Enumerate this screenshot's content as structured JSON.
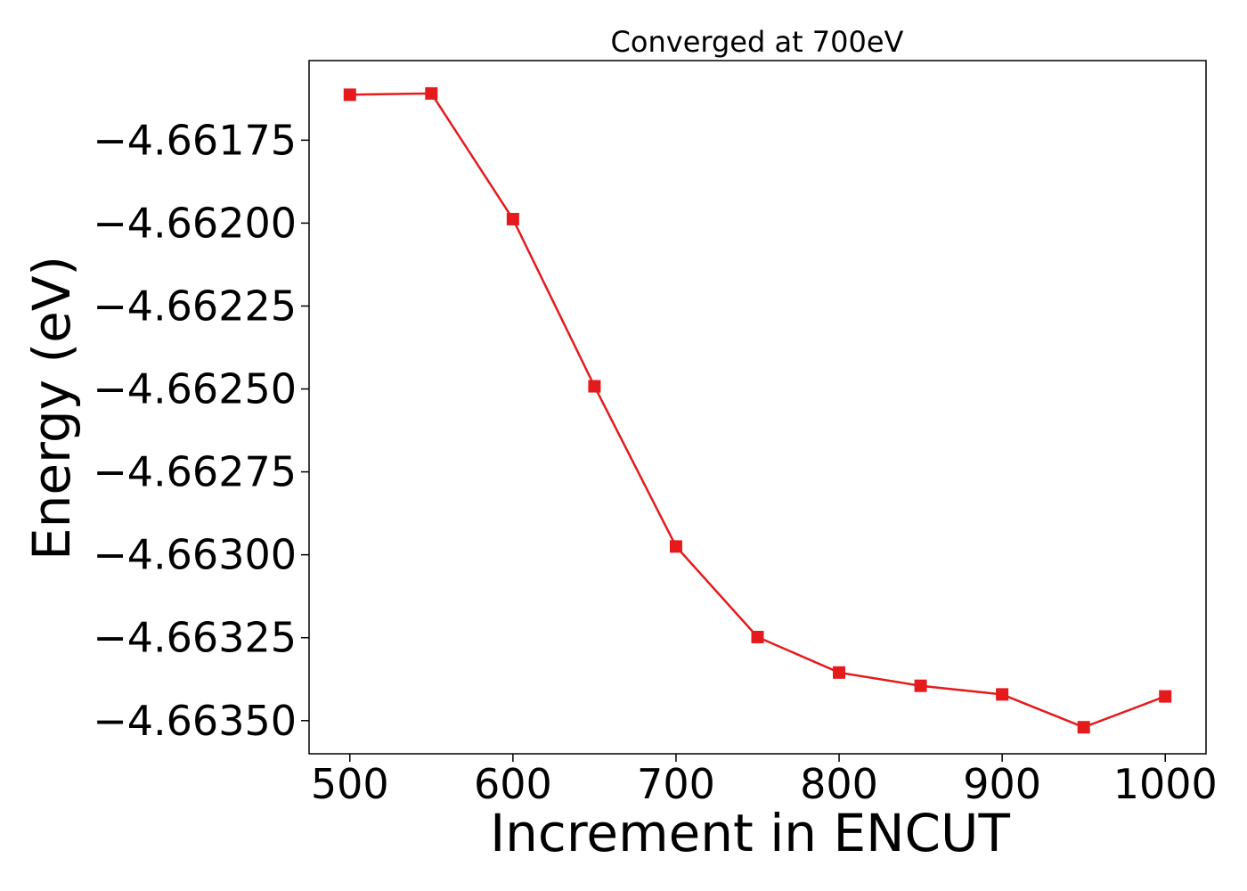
{
  "chart_data": {
    "type": "line",
    "title": "Converged at 700eV",
    "xlabel": "Increment in ENCUT",
    "ylabel": "Energy (eV)",
    "xlim": [
      475,
      1025
    ],
    "ylim": [
      -4.6636,
      -4.66151
    ],
    "xticks": [
      500,
      600,
      700,
      800,
      900,
      1000
    ],
    "xtick_labels": [
      "500",
      "600",
      "700",
      "800",
      "900",
      "1000"
    ],
    "yticks": [
      -4.66175,
      -4.662,
      -4.66225,
      -4.6625,
      -4.66275,
      -4.663,
      -4.66325,
      -4.6635
    ],
    "ytick_labels": [
      "−4.66175",
      "−4.66200",
      "−4.66225",
      "−4.66250",
      "−4.66275",
      "−4.66300",
      "−4.66325",
      "−4.66350"
    ],
    "grid": false,
    "series": [
      {
        "color": "#e41a1c",
        "marker": "square",
        "x": [
          500,
          550,
          600,
          650,
          700,
          750,
          800,
          850,
          900,
          950,
          1000
        ],
        "y": [
          -4.661613,
          -4.661609,
          -4.661988,
          -4.662492,
          -4.662975,
          -4.663248,
          -4.663355,
          -4.663395,
          -4.663421,
          -4.66352,
          -4.663427
        ]
      }
    ]
  }
}
